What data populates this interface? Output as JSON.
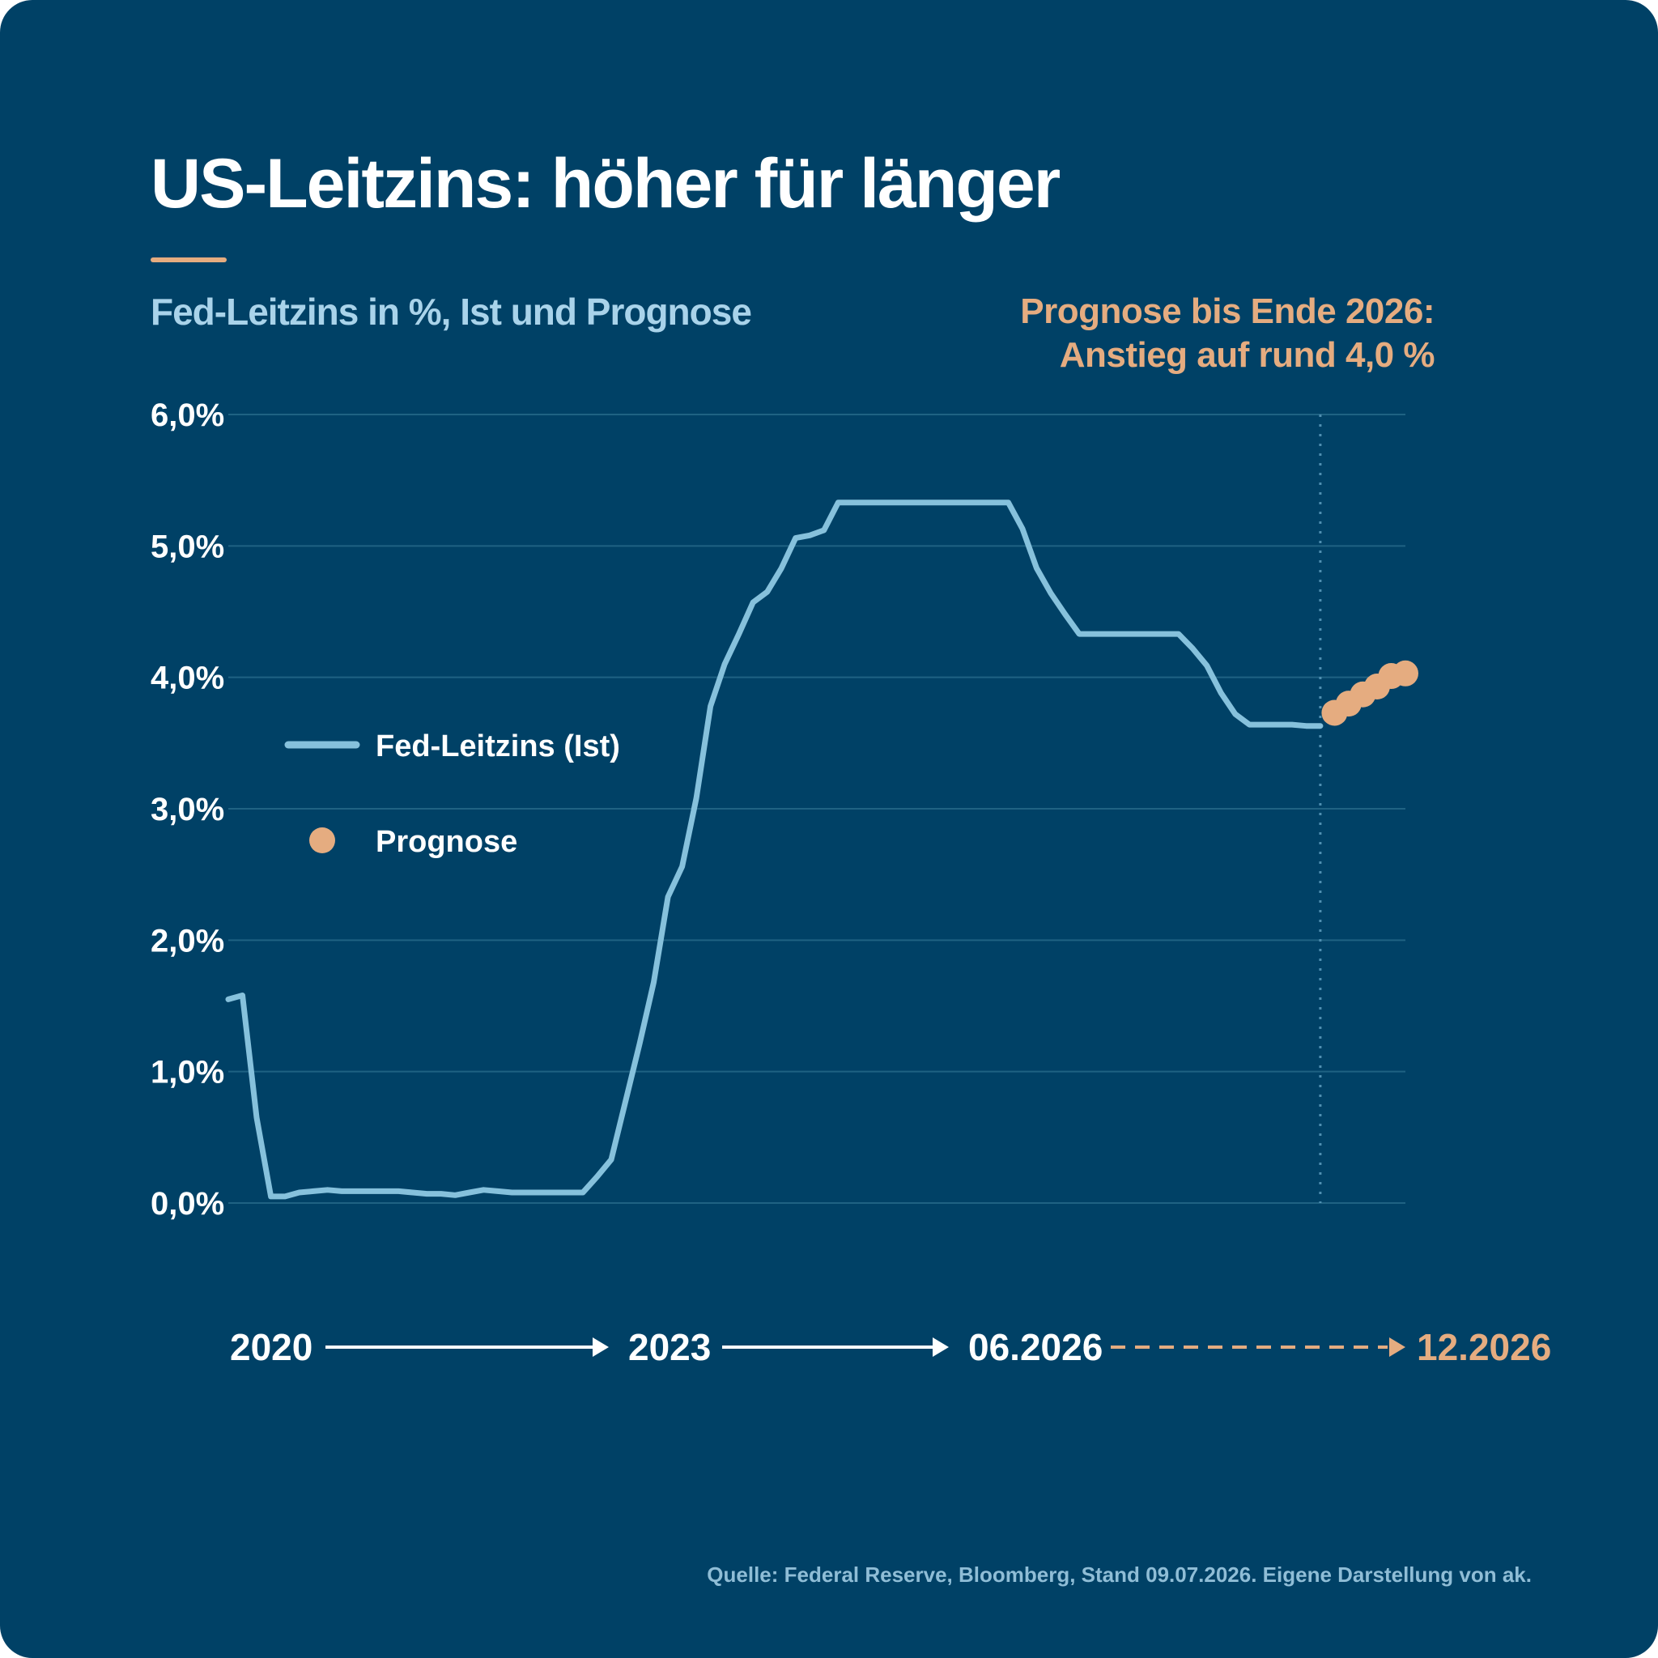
{
  "colors": {
    "background": "#004166",
    "actual_line": "#86c1dc",
    "forecast_dot": "#e5ac80",
    "gridline": "#1f6283",
    "text": "#ffffff",
    "subtitle": "#a9d3ea",
    "accent": "#e5ac80"
  },
  "title": "US-Leitzins: höher für länger",
  "subtitle": "Fed-Leitzins in %, Ist und Prognose",
  "callout": {
    "line1": "Prognose bis Ende 2026:",
    "line2": "Anstieg auf rund 4,0 %"
  },
  "source": "Quelle: Federal Reserve, Bloomberg, Stand 09.07.2026. Eigene Darstellung von ak.",
  "timeline": {
    "labels": [
      "2020",
      "2023",
      "06.2026",
      "12.2026"
    ]
  },
  "chart_data": {
    "type": "line",
    "title": "US-Leitzins: höher für länger",
    "subtitle": "Fed-Leitzins in %, Ist und Prognose",
    "ylim": [
      0,
      6
    ],
    "yticks": [
      0,
      1,
      2,
      3,
      4,
      5,
      6
    ],
    "ytick_labels": [
      "0,0%",
      "1,0%",
      "2,0%",
      "3,0%",
      "4,0%",
      "5,0%",
      "6,0%"
    ],
    "grid": true,
    "legend": {
      "placement": "left-middle",
      "entries": [
        "Fed-Leitzins (Ist)",
        "Prognose"
      ]
    },
    "x_period": [
      "2020-01",
      "2026-12"
    ],
    "series": [
      {
        "name": "Fed-Leitzins (Ist)",
        "style": "line",
        "x": [
          "2020-01",
          "2020-02",
          "2020-03",
          "2020-04",
          "2020-05",
          "2020-06",
          "2020-07",
          "2020-08",
          "2020-09",
          "2020-10",
          "2020-11",
          "2020-12",
          "2021-01",
          "2021-02",
          "2021-03",
          "2021-04",
          "2021-05",
          "2021-06",
          "2021-07",
          "2021-08",
          "2021-09",
          "2021-10",
          "2021-11",
          "2021-12",
          "2022-01",
          "2022-02",
          "2022-03",
          "2022-04",
          "2022-05",
          "2022-06",
          "2022-07",
          "2022-08",
          "2022-09",
          "2022-10",
          "2022-11",
          "2022-12",
          "2023-01",
          "2023-02",
          "2023-03",
          "2023-04",
          "2023-05",
          "2023-06",
          "2023-07",
          "2023-08",
          "2023-09",
          "2023-10",
          "2023-11",
          "2023-12",
          "2024-01",
          "2024-02",
          "2024-03",
          "2024-04",
          "2024-05",
          "2024-06",
          "2024-07",
          "2024-08",
          "2024-09",
          "2024-10",
          "2024-11",
          "2024-12",
          "2025-01",
          "2025-02",
          "2025-03",
          "2025-04",
          "2025-05",
          "2025-06",
          "2025-07",
          "2025-08",
          "2025-09",
          "2025-10",
          "2025-11",
          "2025-12",
          "2026-01",
          "2026-02",
          "2026-03",
          "2026-04",
          "2026-05",
          "2026-06"
        ],
        "values": [
          1.55,
          1.58,
          0.65,
          0.05,
          0.05,
          0.08,
          0.09,
          0.1,
          0.09,
          0.09,
          0.09,
          0.09,
          0.09,
          0.08,
          0.07,
          0.07,
          0.06,
          0.08,
          0.1,
          0.09,
          0.08,
          0.08,
          0.08,
          0.08,
          0.08,
          0.08,
          0.2,
          0.33,
          0.77,
          1.21,
          1.68,
          2.33,
          2.56,
          3.08,
          3.78,
          4.1,
          4.33,
          4.57,
          4.65,
          4.83,
          5.06,
          5.08,
          5.12,
          5.33,
          5.33,
          5.33,
          5.33,
          5.33,
          5.33,
          5.33,
          5.33,
          5.33,
          5.33,
          5.33,
          5.33,
          5.33,
          5.13,
          4.83,
          4.64,
          4.48,
          4.33,
          4.33,
          4.33,
          4.33,
          4.33,
          4.33,
          4.33,
          4.33,
          4.22,
          4.09,
          3.88,
          3.72,
          3.64,
          3.64,
          3.64,
          3.64,
          3.63,
          3.63
        ]
      },
      {
        "name": "Prognose",
        "style": "dots",
        "x": [
          "2026-07",
          "2026-08",
          "2026-09",
          "2026-10",
          "2026-11",
          "2026-12"
        ],
        "values": [
          3.73,
          3.8,
          3.87,
          3.93,
          4.01,
          4.03
        ]
      }
    ]
  }
}
